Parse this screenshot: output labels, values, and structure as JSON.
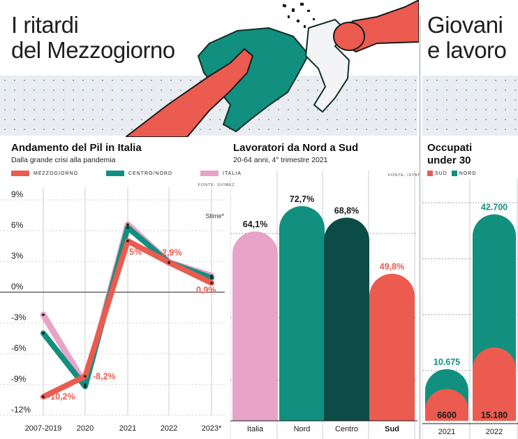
{
  "header": {
    "left_title_line1": "I ritardi",
    "left_title_line2": "del Mezzogiorno",
    "right_title_line1": "Giovani",
    "right_title_line2": "e lavoro"
  },
  "colors": {
    "mezzogiorno": "#ec5b4f",
    "centro_nord": "#12907f",
    "italia": "#e7a3c8",
    "centro": "#0b4c46",
    "background_panel": "#e9edf1"
  },
  "chart_data": [
    {
      "type": "line",
      "title": "Andamento del Pil in Italia",
      "subtitle": "Dalla grande crisi alla pandemia",
      "source": "FONTE: SVIMEZ",
      "annotation": "Stime*",
      "categories": [
        "2007-2019",
        "2020",
        "2021",
        "2022",
        "2023*"
      ],
      "series": [
        {
          "name": "MEZZOGIORNO",
          "values": [
            -10.2,
            -8.2,
            5.0,
            2.9,
            0.9
          ]
        },
        {
          "name": "CENTRO/NORD",
          "values": [
            -4.0,
            -9.2,
            6.3,
            2.9,
            1.4
          ]
        },
        {
          "name": "ITALIA",
          "values": [
            -2.2,
            -9.0,
            6.6,
            2.9,
            1.6
          ]
        }
      ],
      "data_labels": [
        "-10,2%",
        "-8,2%",
        "5%",
        "2,9%",
        "0,9%"
      ],
      "y_ticks": [
        "9%",
        "6%",
        "3%",
        "0%",
        "-3%",
        "-6%",
        "-9%",
        "-12%"
      ],
      "ylim": [
        -12,
        9
      ]
    },
    {
      "type": "bar",
      "title": "Lavoratori da Nord a Sud",
      "subtitle": "20-64 anni, 4° trimestre 2021",
      "source": "FONTE: ISTAT",
      "categories": [
        "Italia",
        "Nord",
        "Centro",
        "Sud"
      ],
      "values": [
        64.1,
        72.7,
        68.8,
        49.8
      ],
      "value_labels": [
        "64,1%",
        "72,7%",
        "68,8%",
        "49,8%"
      ],
      "ylim": [
        0,
        80
      ]
    },
    {
      "type": "bar",
      "title": "Occupati under 30",
      "categories": [
        "2021",
        "2022"
      ],
      "legend": [
        "SUD",
        "NORD"
      ],
      "series": [
        {
          "name": "SUD",
          "values": [
            6600,
            15180
          ],
          "labels": [
            "6600",
            "15.180"
          ]
        },
        {
          "name": "NORD",
          "values": [
            10675,
            42700
          ],
          "labels": [
            "10.675",
            "42.700"
          ]
        }
      ],
      "ylim": [
        0,
        48000
      ]
    }
  ]
}
